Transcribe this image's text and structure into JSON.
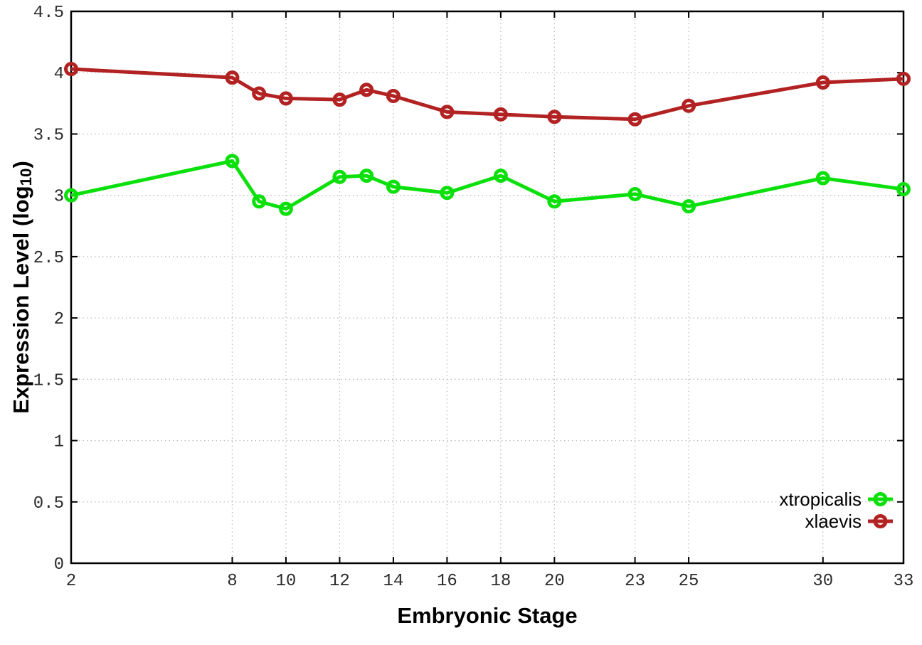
{
  "figure": {
    "xlabel": "Embryonic Stage",
    "ylabel_prefix": "Expression Level (log",
    "ylabel_subscript": "10",
    "ylabel_suffix": ")"
  },
  "chart_data": {
    "type": "line",
    "title": "",
    "xlabel": "Embryonic Stage",
    "ylabel": "Expression Level (log10)",
    "xlim": [
      2,
      33
    ],
    "ylim": [
      0,
      4.5
    ],
    "xticks": [
      2,
      8,
      10,
      12,
      14,
      16,
      18,
      20,
      23,
      25,
      30,
      33
    ],
    "yticks": [
      0,
      0.5,
      1,
      1.5,
      2,
      2.5,
      3,
      3.5,
      4,
      4.5
    ],
    "grid": true,
    "grid_color": "#bbbbbb",
    "border_color": "#000000",
    "legend_position": "bottom-right",
    "x": [
      2,
      8,
      9,
      10,
      12,
      13,
      14,
      16,
      18,
      20,
      23,
      25,
      30,
      33
    ],
    "series": [
      {
        "name": "xtropicalis",
        "color": "#0ce00c",
        "values": [
          3.0,
          3.28,
          2.95,
          2.89,
          3.15,
          3.16,
          3.07,
          3.02,
          3.16,
          2.95,
          3.01,
          2.91,
          3.14,
          3.05
        ]
      },
      {
        "name": "xlaevis",
        "color": "#b22222",
        "values": [
          4.03,
          3.96,
          3.83,
          3.79,
          3.78,
          3.86,
          3.81,
          3.68,
          3.66,
          3.64,
          3.62,
          3.73,
          3.92,
          3.95
        ]
      }
    ]
  }
}
